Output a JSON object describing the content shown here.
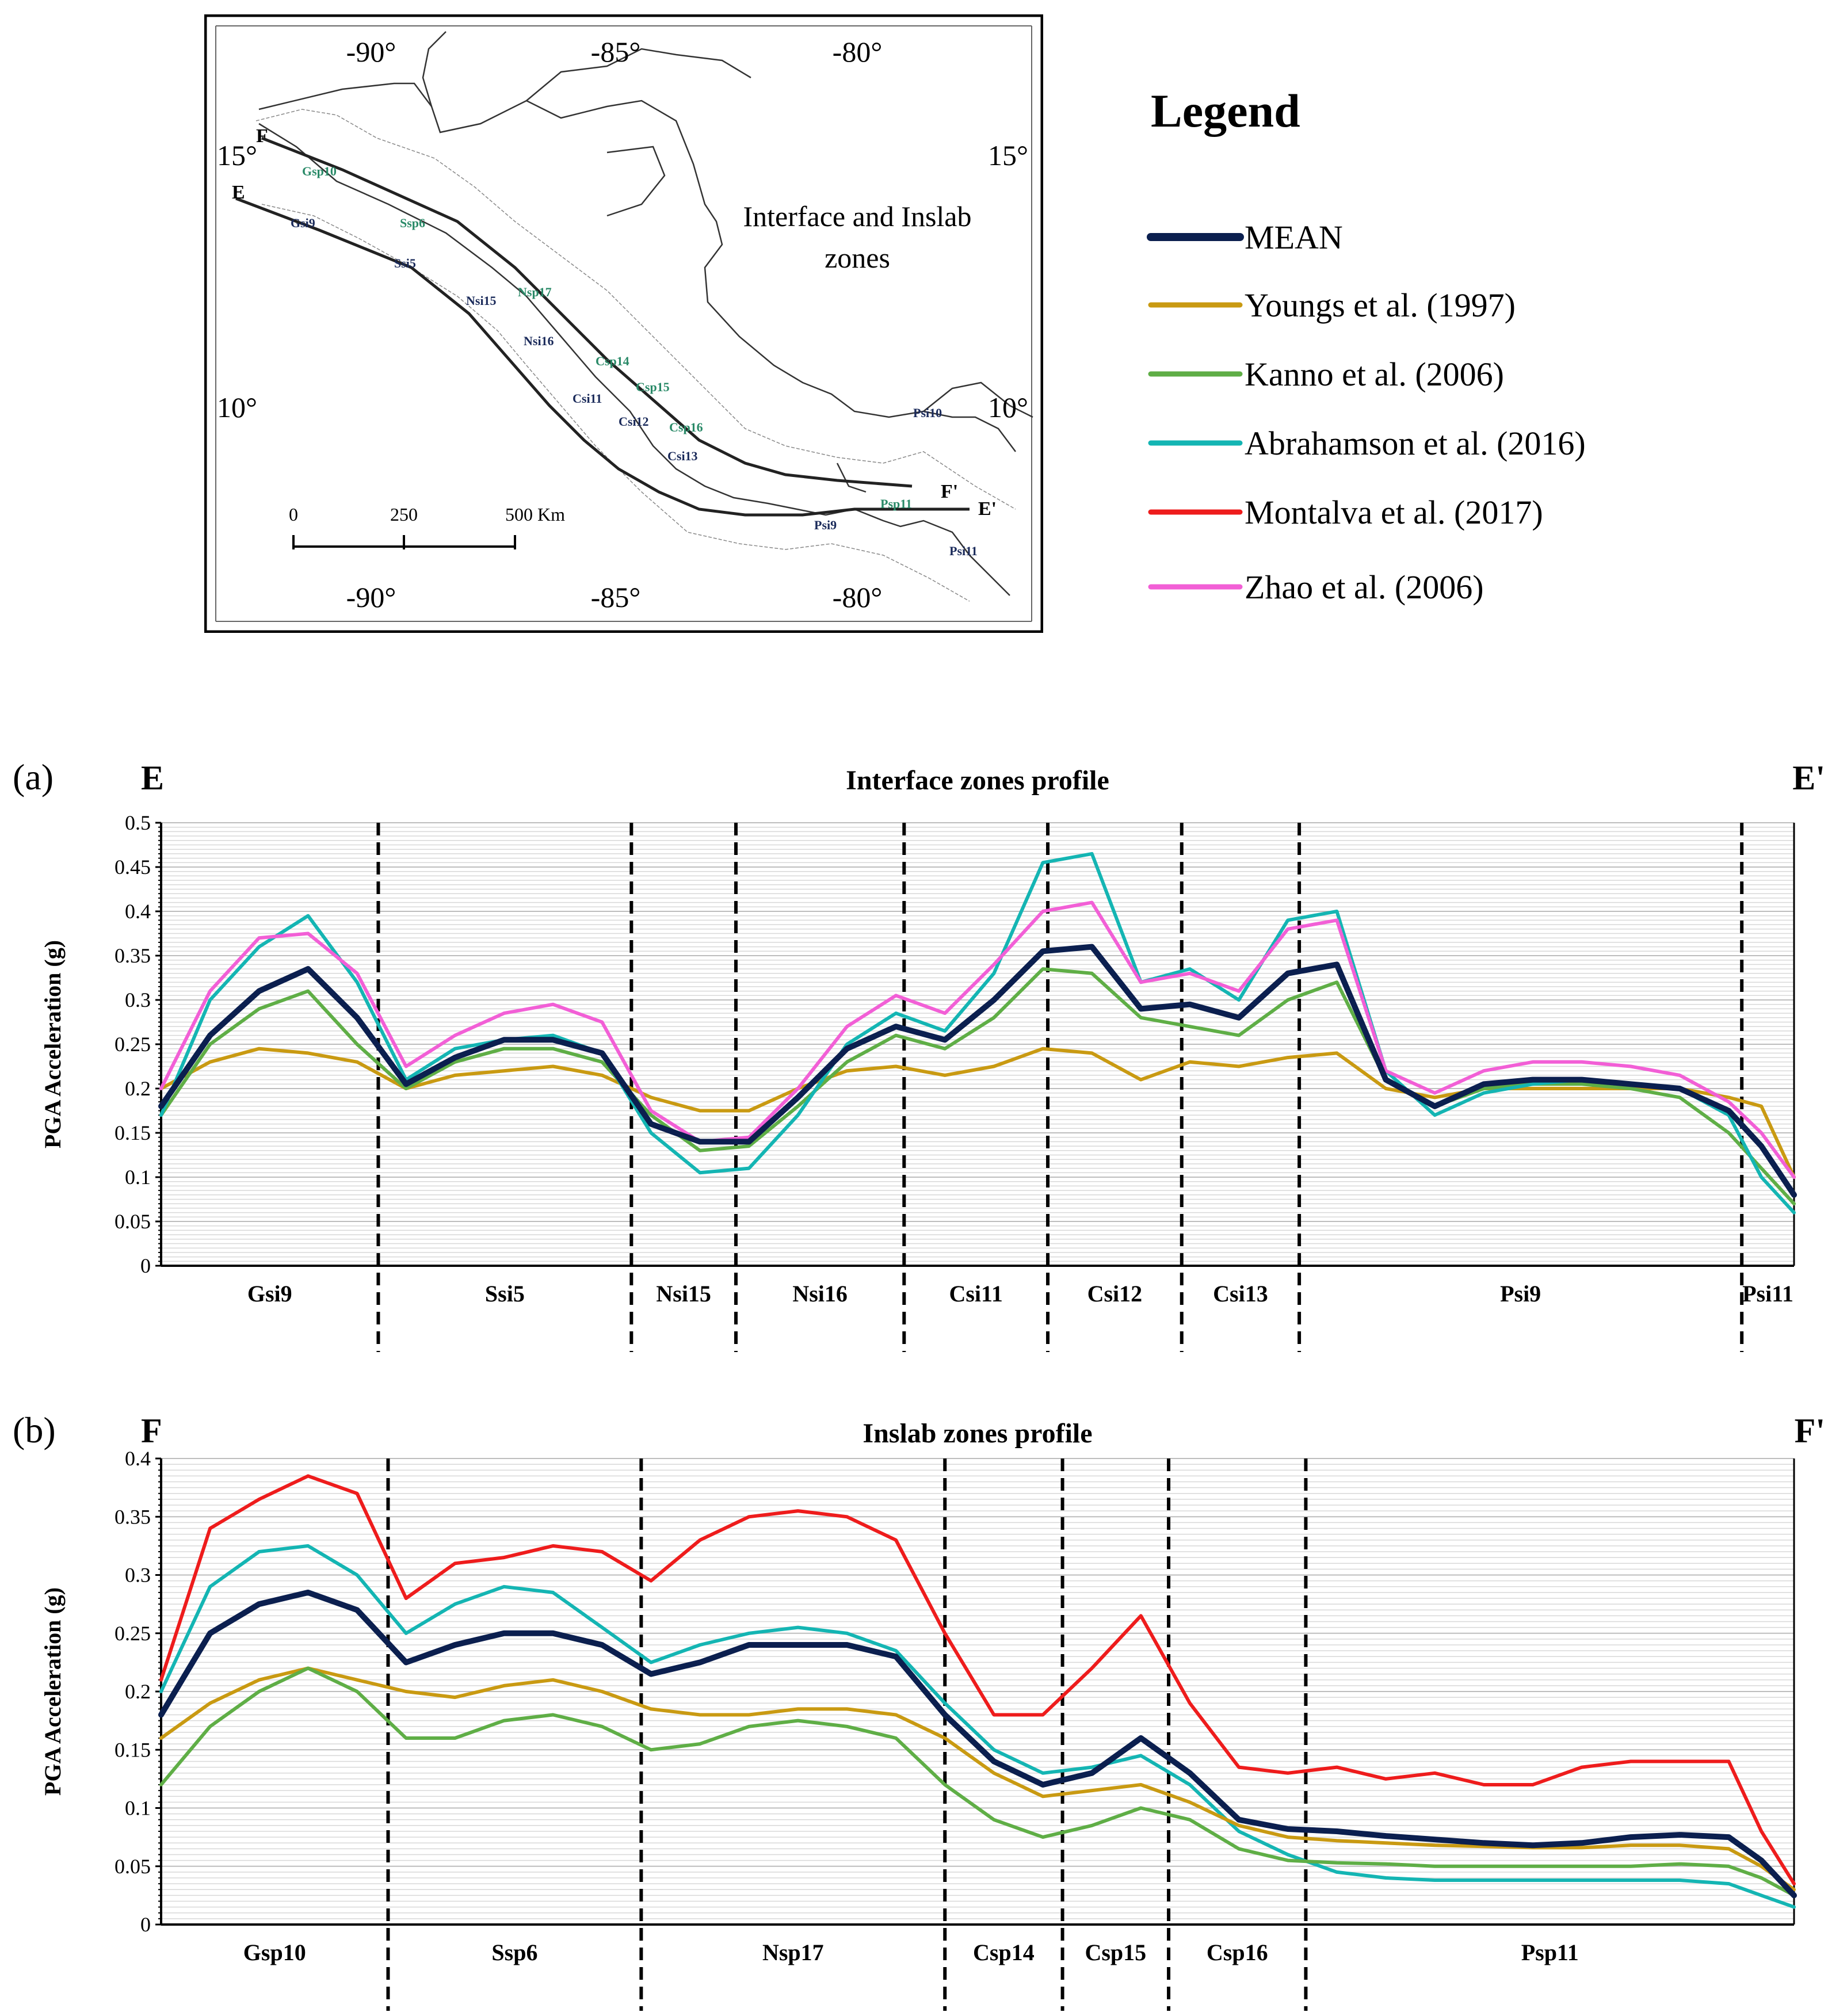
{
  "map": {
    "title_line1": "Interface and Inslab",
    "title_line2": "zones",
    "lon_labels": [
      "-90°",
      "-85°",
      "-80°"
    ],
    "lat_labels": [
      "15°",
      "10°"
    ],
    "scale_labels": [
      "0",
      "250",
      "500 Km"
    ],
    "profile_labels": [
      "E",
      "E'",
      "F",
      "F'"
    ],
    "zone_labels": [
      "Gsp10",
      "Gsi9",
      "Ssp6",
      "Ssi5",
      "Nsi15",
      "Nsp17",
      "Nsi16",
      "Csp14",
      "Csp15",
      "Csi11",
      "Csi12",
      "Csp16",
      "Csi13",
      "Psi10",
      "Psp11",
      "Psi9",
      "Psi11"
    ]
  },
  "legend": {
    "title": "Legend",
    "items": [
      {
        "label": "MEAN",
        "color": "#0b1f4f"
      },
      {
        "label": "Youngs et al. (1997)",
        "color": "#c99a12"
      },
      {
        "label": "Kanno et al. (2006)",
        "color": "#5fae46"
      },
      {
        "label": "Abrahamson et al. (2016)",
        "color": "#14b5b3"
      },
      {
        "label": "Montalva et al. (2017)",
        "color": "#ee1c1c"
      },
      {
        "label": "Zhao et al. (2006)",
        "color": "#f25fd6"
      }
    ]
  },
  "chart_data": [
    {
      "panel": "(a)",
      "type": "line",
      "title": "Interface zones profile",
      "left_label": "E",
      "right_label": "E'",
      "ylabel": "PGA Acceleration (g)",
      "ylim": [
        0,
        0.5
      ],
      "yticks": [
        "0",
        "0.05",
        "0.1",
        "0.15",
        "0.2",
        "0.25",
        "0.3",
        "0.35",
        "0.4",
        "0.45",
        "0.5"
      ],
      "x": [
        0,
        0.03,
        0.06,
        0.09,
        0.12,
        0.15,
        0.18,
        0.21,
        0.24,
        0.27,
        0.3,
        0.33,
        0.36,
        0.39,
        0.42,
        0.45,
        0.48,
        0.51,
        0.54,
        0.57,
        0.6,
        0.63,
        0.66,
        0.69,
        0.72,
        0.75,
        0.78,
        0.81,
        0.84,
        0.87,
        0.9,
        0.93,
        0.96,
        0.98,
        1.0
      ],
      "zones": [
        {
          "name": "Gsi9",
          "start": 0,
          "end": 0.133
        },
        {
          "name": "Ssi5",
          "start": 0.133,
          "end": 0.288
        },
        {
          "name": "Nsi15",
          "start": 0.288,
          "end": 0.352
        },
        {
          "name": "Nsi16",
          "start": 0.352,
          "end": 0.455
        },
        {
          "name": "Csi11",
          "start": 0.455,
          "end": 0.543
        },
        {
          "name": "Csi12",
          "start": 0.543,
          "end": 0.625
        },
        {
          "name": "Csi13",
          "start": 0.625,
          "end": 0.697
        },
        {
          "name": "Psi9",
          "start": 0.697,
          "end": 0.968
        },
        {
          "name": "Psi11",
          "start": 0.968,
          "end": 1.0
        }
      ],
      "series": [
        {
          "name": "Youngs et al. (1997)",
          "values": [
            0.2,
            0.23,
            0.245,
            0.24,
            0.23,
            0.2,
            0.215,
            0.22,
            0.225,
            0.215,
            0.19,
            0.175,
            0.175,
            0.2,
            0.22,
            0.225,
            0.215,
            0.225,
            0.245,
            0.24,
            0.21,
            0.23,
            0.225,
            0.235,
            0.24,
            0.2,
            0.19,
            0.2,
            0.2,
            0.2,
            0.2,
            0.2,
            0.19,
            0.18,
            0.1
          ]
        },
        {
          "name": "Kanno et al. (2006)",
          "values": [
            0.17,
            0.25,
            0.29,
            0.31,
            0.25,
            0.2,
            0.23,
            0.245,
            0.245,
            0.23,
            0.17,
            0.13,
            0.135,
            0.18,
            0.23,
            0.26,
            0.245,
            0.28,
            0.335,
            0.33,
            0.28,
            0.27,
            0.26,
            0.3,
            0.32,
            0.21,
            0.18,
            0.2,
            0.205,
            0.205,
            0.2,
            0.19,
            0.15,
            0.11,
            0.07
          ]
        },
        {
          "name": "Abrahamson et al. (2016)",
          "values": [
            0.17,
            0.3,
            0.36,
            0.395,
            0.32,
            0.21,
            0.245,
            0.255,
            0.26,
            0.24,
            0.15,
            0.105,
            0.11,
            0.17,
            0.25,
            0.285,
            0.265,
            0.33,
            0.455,
            0.465,
            0.32,
            0.335,
            0.3,
            0.39,
            0.4,
            0.22,
            0.17,
            0.195,
            0.205,
            0.21,
            0.205,
            0.2,
            0.17,
            0.1,
            0.06
          ]
        },
        {
          "name": "Zhao et al. (2006)",
          "values": [
            0.2,
            0.31,
            0.37,
            0.375,
            0.33,
            0.225,
            0.26,
            0.285,
            0.295,
            0.275,
            0.175,
            0.14,
            0.145,
            0.2,
            0.27,
            0.305,
            0.285,
            0.34,
            0.4,
            0.41,
            0.32,
            0.33,
            0.31,
            0.38,
            0.39,
            0.22,
            0.195,
            0.22,
            0.23,
            0.23,
            0.225,
            0.215,
            0.185,
            0.15,
            0.1
          ]
        },
        {
          "name": "MEAN",
          "values": [
            0.18,
            0.26,
            0.31,
            0.335,
            0.28,
            0.205,
            0.235,
            0.255,
            0.255,
            0.24,
            0.16,
            0.14,
            0.14,
            0.19,
            0.245,
            0.27,
            0.255,
            0.3,
            0.355,
            0.36,
            0.29,
            0.295,
            0.28,
            0.33,
            0.34,
            0.21,
            0.18,
            0.205,
            0.21,
            0.21,
            0.205,
            0.2,
            0.175,
            0.135,
            0.08
          ]
        }
      ]
    },
    {
      "panel": "(b)",
      "type": "line",
      "title": "Inslab zones profile",
      "left_label": "F",
      "right_label": "F'",
      "ylabel": "PGA Acceleration (g)",
      "ylim": [
        0,
        0.4
      ],
      "yticks": [
        "0",
        "0.05",
        "0.1",
        "0.15",
        "0.2",
        "0.25",
        "0.3",
        "0.35",
        "0.4"
      ],
      "x": [
        0,
        0.03,
        0.06,
        0.09,
        0.12,
        0.15,
        0.18,
        0.21,
        0.24,
        0.27,
        0.3,
        0.33,
        0.36,
        0.39,
        0.42,
        0.45,
        0.48,
        0.51,
        0.54,
        0.57,
        0.6,
        0.63,
        0.66,
        0.69,
        0.72,
        0.75,
        0.78,
        0.81,
        0.84,
        0.87,
        0.9,
        0.93,
        0.96,
        0.98,
        1.0
      ],
      "zones": [
        {
          "name": "Gsp10",
          "start": 0,
          "end": 0.139
        },
        {
          "name": "Ssp6",
          "start": 0.139,
          "end": 0.294
        },
        {
          "name": "Nsp17",
          "start": 0.294,
          "end": 0.48
        },
        {
          "name": "Csp14",
          "start": 0.48,
          "end": 0.552
        },
        {
          "name": "Csp15",
          "start": 0.552,
          "end": 0.617
        },
        {
          "name": "Csp16",
          "start": 0.617,
          "end": 0.701
        },
        {
          "name": "Psp11",
          "start": 0.701,
          "end": 1.0
        }
      ],
      "series": [
        {
          "name": "Montalva et al. (2017)",
          "values": [
            0.21,
            0.34,
            0.365,
            0.385,
            0.37,
            0.28,
            0.31,
            0.315,
            0.325,
            0.32,
            0.295,
            0.33,
            0.35,
            0.355,
            0.35,
            0.33,
            0.25,
            0.18,
            0.18,
            0.22,
            0.265,
            0.19,
            0.135,
            0.13,
            0.135,
            0.125,
            0.13,
            0.12,
            0.12,
            0.135,
            0.14,
            0.14,
            0.14,
            0.08,
            0.035
          ]
        },
        {
          "name": "Abrahamson et al. (2016)",
          "values": [
            0.2,
            0.29,
            0.32,
            0.325,
            0.3,
            0.25,
            0.275,
            0.29,
            0.285,
            0.255,
            0.225,
            0.24,
            0.25,
            0.255,
            0.25,
            0.235,
            0.19,
            0.15,
            0.13,
            0.135,
            0.145,
            0.12,
            0.08,
            0.06,
            0.045,
            0.04,
            0.038,
            0.038,
            0.038,
            0.038,
            0.038,
            0.038,
            0.035,
            0.025,
            0.015
          ]
        },
        {
          "name": "Youngs et al. (1997)",
          "values": [
            0.16,
            0.19,
            0.21,
            0.22,
            0.21,
            0.2,
            0.195,
            0.205,
            0.21,
            0.2,
            0.185,
            0.18,
            0.18,
            0.185,
            0.185,
            0.18,
            0.16,
            0.13,
            0.11,
            0.115,
            0.12,
            0.105,
            0.085,
            0.075,
            0.072,
            0.07,
            0.068,
            0.067,
            0.066,
            0.066,
            0.068,
            0.068,
            0.065,
            0.05,
            0.03
          ]
        },
        {
          "name": "Kanno et al. (2006)",
          "values": [
            0.12,
            0.17,
            0.2,
            0.22,
            0.2,
            0.16,
            0.16,
            0.175,
            0.18,
            0.17,
            0.15,
            0.155,
            0.17,
            0.175,
            0.17,
            0.16,
            0.12,
            0.09,
            0.075,
            0.085,
            0.1,
            0.09,
            0.065,
            0.055,
            0.053,
            0.052,
            0.05,
            0.05,
            0.05,
            0.05,
            0.05,
            0.052,
            0.05,
            0.04,
            0.025
          ]
        },
        {
          "name": "MEAN",
          "values": [
            0.18,
            0.25,
            0.275,
            0.285,
            0.27,
            0.225,
            0.24,
            0.25,
            0.25,
            0.24,
            0.215,
            0.225,
            0.24,
            0.24,
            0.24,
            0.23,
            0.18,
            0.14,
            0.12,
            0.13,
            0.16,
            0.13,
            0.09,
            0.082,
            0.08,
            0.076,
            0.073,
            0.07,
            0.068,
            0.07,
            0.075,
            0.077,
            0.075,
            0.055,
            0.025
          ]
        }
      ]
    }
  ]
}
